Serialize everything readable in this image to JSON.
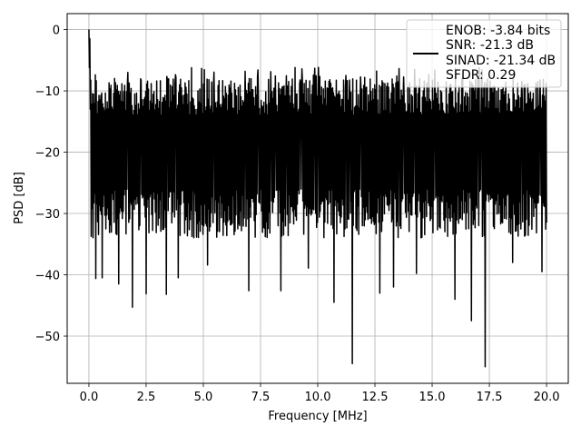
{
  "chart_data": {
    "type": "line",
    "xlabel": "Frequency [MHz]",
    "ylabel": "PSD [dB]",
    "xlim": [
      -0.95,
      20.95
    ],
    "ylim": [
      -57.7,
      2.6
    ],
    "xticks": [
      0.0,
      2.5,
      5.0,
      7.5,
      10.0,
      12.5,
      15.0,
      17.5,
      20.0
    ],
    "xtick_labels": [
      "0.0",
      "2.5",
      "5.0",
      "7.5",
      "10.0",
      "12.5",
      "15.0",
      "17.5",
      "20.0"
    ],
    "yticks": [
      0,
      -10,
      -20,
      -30,
      -40,
      -50
    ],
    "ytick_labels": [
      "0",
      "−10",
      "−20",
      "−30",
      "−40",
      "−50"
    ],
    "grid": true,
    "legend": {
      "placement": "top-right",
      "entries": [
        "ENOB: -3.84 bits",
        "SNR: -21.3 dB",
        "SINAD: -21.34 dB",
        "SFDR: 0.29"
      ]
    },
    "series": [
      {
        "color": "#000000",
        "x_range": [
          0.0,
          20.0
        ],
        "n_points": 1000,
        "peak": {
          "x": 0.0,
          "y": 0.0
        },
        "band_top": -8,
        "band_bottom": -30,
        "spikes": [
          {
            "x": 0.3,
            "y": -40.6
          },
          {
            "x": 0.6,
            "y": -40.5
          },
          {
            "x": 1.3,
            "y": -41.5
          },
          {
            "x": 1.9,
            "y": -45.3
          },
          {
            "x": 2.5,
            "y": -43.1
          },
          {
            "x": 3.4,
            "y": -43.2
          },
          {
            "x": 3.9,
            "y": -40.5
          },
          {
            "x": 5.2,
            "y": -38.4
          },
          {
            "x": 7.0,
            "y": -42.6
          },
          {
            "x": 8.4,
            "y": -42.6
          },
          {
            "x": 9.6,
            "y": -38.9
          },
          {
            "x": 10.7,
            "y": -44.5
          },
          {
            "x": 11.5,
            "y": -54.5
          },
          {
            "x": 12.7,
            "y": -43.0
          },
          {
            "x": 13.3,
            "y": -42.0
          },
          {
            "x": 14.3,
            "y": -39.8
          },
          {
            "x": 16.0,
            "y": -44.0
          },
          {
            "x": 16.7,
            "y": -47.5
          },
          {
            "x": 17.3,
            "y": -55.0
          },
          {
            "x": 18.5,
            "y": -38.0
          },
          {
            "x": 19.8,
            "y": -39.5
          }
        ]
      }
    ]
  }
}
